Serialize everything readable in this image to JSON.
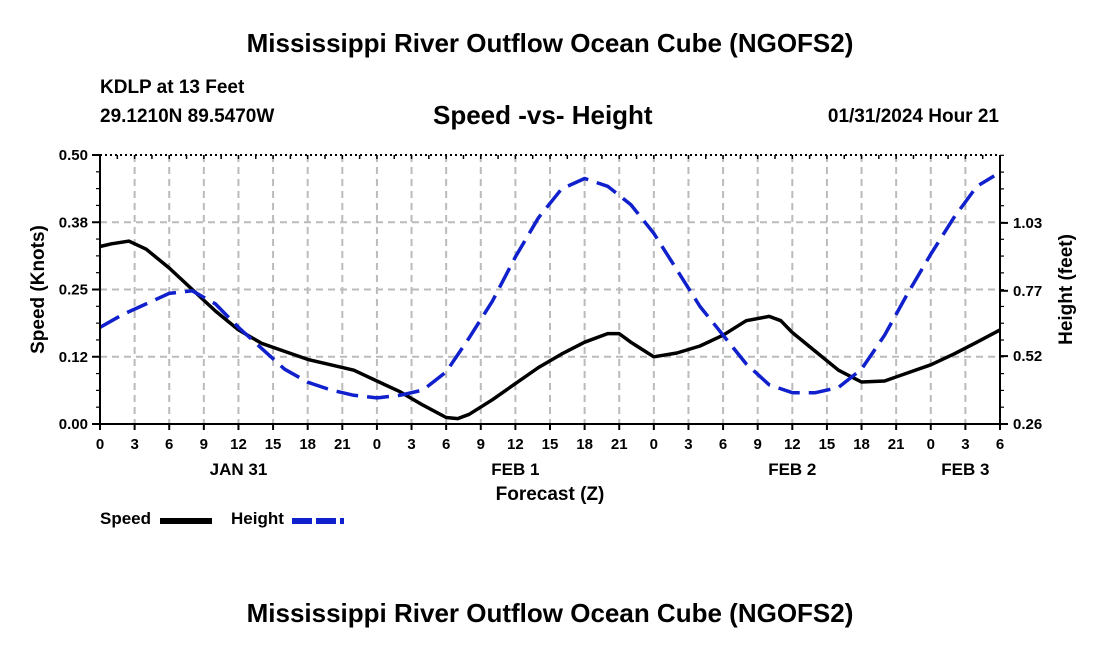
{
  "page_title": "Mississippi River Outflow Ocean Cube (NGOFS2)",
  "station": "KDLP at 13 Feet",
  "coords": "29.1210N  89.5470W",
  "subtitle": "Speed -vs- Height",
  "datetime": "01/31/2024 Hour 21",
  "footer_title": "Mississippi River Outflow Ocean Cube (NGOFS2)",
  "legend": {
    "speed_label": "Speed",
    "height_label": "Height"
  },
  "colors": {
    "speed": "#000000",
    "height": "#1020cc",
    "grid": "#bbbbbb"
  },
  "chart_data": {
    "type": "line",
    "title": "Speed -vs- Height",
    "xlabel": "Forecast (Z)",
    "ylabel": "Speed (Knots)",
    "y2label": "Height (feet)",
    "ylim": [
      0,
      0.5
    ],
    "y2lim": [
      0.26,
      1.29
    ],
    "xlim": [
      0,
      78
    ],
    "y_ticks": [
      0,
      0.125,
      0.25,
      0.375,
      0.5
    ],
    "y_tick_labels": [
      "0.00",
      "0.12",
      "0.25",
      "0.38",
      "0.50"
    ],
    "y2_ticks": [
      0.26,
      0.52,
      0.77,
      1.03
    ],
    "y2_tick_labels": [
      "0.26",
      "0.52",
      "0.77",
      "1.03"
    ],
    "x_ticks": [
      0,
      3,
      6,
      9,
      12,
      15,
      18,
      21,
      24,
      27,
      30,
      33,
      36,
      39,
      42,
      45,
      48,
      51,
      54,
      57,
      60,
      63,
      66,
      69,
      72,
      75,
      78
    ],
    "x_tick_labels": [
      "0",
      "3",
      "6",
      "9",
      "12",
      "15",
      "18",
      "21",
      "0",
      "3",
      "6",
      "9",
      "12",
      "15",
      "18",
      "21",
      "0",
      "3",
      "6",
      "9",
      "12",
      "15",
      "18",
      "21",
      "0",
      "3",
      "6"
    ],
    "date_labels": [
      {
        "label": "JAN 31",
        "x": 12
      },
      {
        "label": "FEB 1",
        "x": 36
      },
      {
        "label": "FEB 2",
        "x": 60
      },
      {
        "label": "FEB 3",
        "x": 75
      }
    ],
    "grid": true,
    "series": [
      {
        "name": "Speed",
        "axis": "left",
        "style": "solid",
        "x": [
          0,
          1,
          2.5,
          4,
          6,
          8,
          10,
          12,
          14,
          16,
          18,
          20,
          22,
          24,
          26,
          28,
          30,
          31,
          32,
          34,
          36,
          38,
          40,
          42,
          44,
          45,
          46,
          48,
          50,
          52,
          54,
          56,
          58,
          59,
          60,
          62,
          64,
          66,
          68,
          70,
          72,
          74,
          76,
          78
        ],
        "y": [
          0.33,
          0.335,
          0.34,
          0.325,
          0.29,
          0.25,
          0.21,
          0.175,
          0.15,
          0.135,
          0.12,
          0.11,
          0.1,
          0.08,
          0.06,
          0.035,
          0.012,
          0.01,
          0.018,
          0.045,
          0.075,
          0.105,
          0.13,
          0.152,
          0.168,
          0.168,
          0.152,
          0.125,
          0.132,
          0.145,
          0.165,
          0.192,
          0.2,
          0.192,
          0.17,
          0.135,
          0.1,
          0.078,
          0.08,
          0.095,
          0.11,
          0.13,
          0.152,
          0.175
        ]
      },
      {
        "name": "Height",
        "axis": "right",
        "style": "dashed",
        "x": [
          0,
          2,
          4,
          6,
          8,
          10,
          12,
          14,
          16,
          18,
          20,
          22,
          24,
          26,
          28,
          30,
          32,
          34,
          36,
          38,
          40,
          42,
          44,
          46,
          48,
          50,
          52,
          54,
          56,
          58,
          60,
          62,
          64,
          66,
          68,
          70,
          72,
          74,
          76,
          77.5
        ],
        "y": [
          0.63,
          0.68,
          0.72,
          0.76,
          0.77,
          0.72,
          0.63,
          0.55,
          0.47,
          0.42,
          0.39,
          0.37,
          0.36,
          0.37,
          0.39,
          0.46,
          0.59,
          0.73,
          0.9,
          1.05,
          1.16,
          1.2,
          1.17,
          1.1,
          0.99,
          0.85,
          0.71,
          0.6,
          0.49,
          0.41,
          0.38,
          0.38,
          0.4,
          0.47,
          0.6,
          0.76,
          0.91,
          1.05,
          1.17,
          1.21
        ]
      }
    ]
  }
}
